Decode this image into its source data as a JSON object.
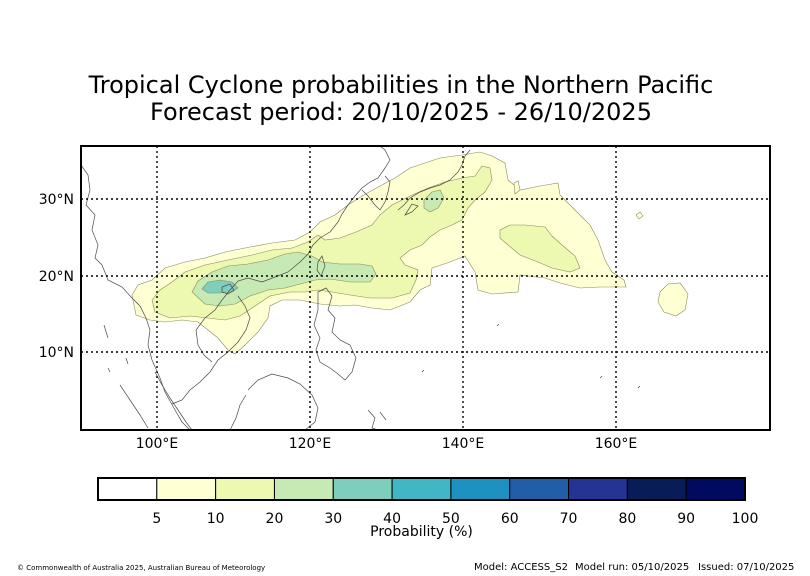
{
  "title": {
    "line1": "Tropical Cyclone probabilities in the Northern Pacific",
    "line2": "Forecast period: 20/10/2025 - 26/10/2025"
  },
  "map": {
    "lon_range": [
      90,
      180
    ],
    "lat_range": [
      0,
      37
    ],
    "lon_ticks": [
      {
        "value": 100,
        "label": "100°E"
      },
      {
        "value": 120,
        "label": "120°E"
      },
      {
        "value": 140,
        "label": "140°E"
      },
      {
        "value": 160,
        "label": "160°E"
      }
    ],
    "lat_ticks": [
      {
        "value": 30,
        "label": "30°N"
      },
      {
        "value": 20,
        "label": "20°N"
      },
      {
        "value": 10,
        "label": "10°N"
      }
    ],
    "gridlines": "dotted"
  },
  "colorbar": {
    "label": "Probability (%)",
    "tick_labels": [
      "5",
      "10",
      "20",
      "30",
      "40",
      "50",
      "60",
      "70",
      "80",
      "90",
      "100"
    ],
    "colors": [
      "#ffffff",
      "#ffffd4",
      "#edf8b1",
      "#c7e9b4",
      "#7fcdbb",
      "#41b6c4",
      "#1d91c0",
      "#225ea8",
      "#253494",
      "#081d58",
      "#000a5e"
    ]
  },
  "footer": {
    "credit": "© Commonwealth of Australia 2025, Australian Bureau of Meteorology",
    "model": "Model: ACCESS_S2",
    "model_run": "Model run: 05/10/2025",
    "issued": "Issued: 07/10/2025"
  }
}
